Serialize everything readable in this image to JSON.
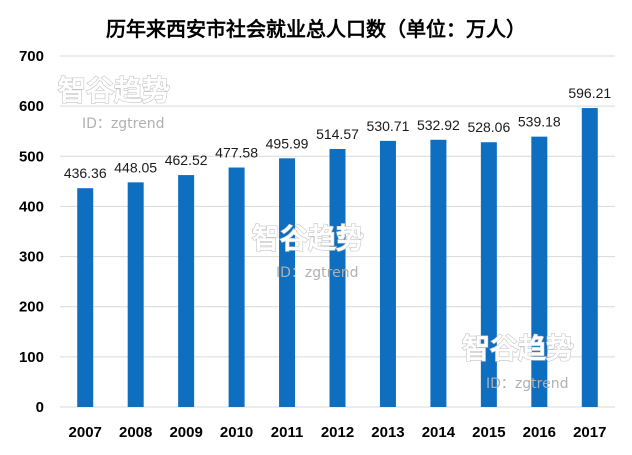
{
  "chart_data": {
    "type": "bar",
    "title": "历年来西安市社会就业总人口数（单位：万人）",
    "xlabel": "",
    "ylabel": "",
    "categories": [
      "2007",
      "2008",
      "2009",
      "2010",
      "2011",
      "2012",
      "2013",
      "2014",
      "2015",
      "2016",
      "2017"
    ],
    "values": [
      436.36,
      448.05,
      462.52,
      477.58,
      495.99,
      514.57,
      530.71,
      532.92,
      528.06,
      539.18,
      596.21
    ],
    "value_labels": [
      "436.36",
      "448.05",
      "462.52",
      "477.58",
      "495.99",
      "514.57",
      "530.71",
      "532.92",
      "528.06",
      "539.18",
      "596.21"
    ],
    "ylim": [
      0,
      700
    ],
    "yticks": [
      0,
      100,
      200,
      300,
      400,
      500,
      600,
      700
    ],
    "grid": true,
    "legend": "none",
    "bar_color": "#0e6fc1",
    "grid_color": "#d9d9d9"
  },
  "watermarks": [
    {
      "title": "智谷趋势",
      "id": "ID：zgtrend"
    },
    {
      "title": "智谷趋势",
      "id": "ID：zgtrend"
    },
    {
      "title": "智谷趋势",
      "id": "ID：zgtrend"
    }
  ]
}
